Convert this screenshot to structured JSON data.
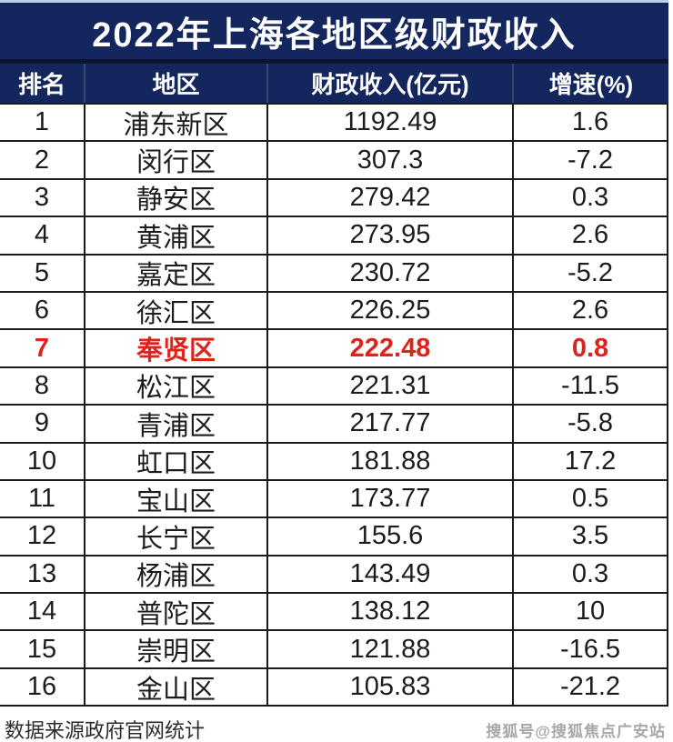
{
  "title": "2022年上海各地区级财政收入",
  "table": {
    "headers": [
      "排名",
      "地区",
      "财政收入(亿元)",
      "增速(%)"
    ],
    "rows": [
      {
        "rank": "1",
        "district": "浦东新区",
        "revenue": "1192.49",
        "growth": "1.6",
        "highlight": false
      },
      {
        "rank": "2",
        "district": "闵行区",
        "revenue": "307.3",
        "growth": "-7.2",
        "highlight": false
      },
      {
        "rank": "3",
        "district": "静安区",
        "revenue": "279.42",
        "growth": "0.3",
        "highlight": false
      },
      {
        "rank": "4",
        "district": "黄浦区",
        "revenue": "273.95",
        "growth": "2.6",
        "highlight": false
      },
      {
        "rank": "5",
        "district": "嘉定区",
        "revenue": "230.72",
        "growth": "-5.2",
        "highlight": false
      },
      {
        "rank": "6",
        "district": "徐汇区",
        "revenue": "226.25",
        "growth": "2.6",
        "highlight": false
      },
      {
        "rank": "7",
        "district": "奉贤区",
        "revenue": "222.48",
        "growth": "0.8",
        "highlight": true
      },
      {
        "rank": "8",
        "district": "松江区",
        "revenue": "221.31",
        "growth": "-11.5",
        "highlight": false
      },
      {
        "rank": "9",
        "district": "青浦区",
        "revenue": "217.77",
        "growth": "-5.8",
        "highlight": false
      },
      {
        "rank": "10",
        "district": "虹口区",
        "revenue": "181.88",
        "growth": "17.2",
        "highlight": false
      },
      {
        "rank": "11",
        "district": "宝山区",
        "revenue": "173.77",
        "growth": "0.5",
        "highlight": false
      },
      {
        "rank": "12",
        "district": "长宁区",
        "revenue": "155.6",
        "growth": "3.5",
        "highlight": false
      },
      {
        "rank": "13",
        "district": "杨浦区",
        "revenue": "143.49",
        "growth": "0.3",
        "highlight": false
      },
      {
        "rank": "14",
        "district": "普陀区",
        "revenue": "138.12",
        "growth": "10",
        "highlight": false
      },
      {
        "rank": "15",
        "district": "崇明区",
        "revenue": "121.88",
        "growth": "-16.5",
        "highlight": false
      },
      {
        "rank": "16",
        "district": "金山区",
        "revenue": "105.83",
        "growth": "-21.2",
        "highlight": false
      }
    ]
  },
  "footer": {
    "source": "数据来源政府官网统计",
    "watermark": "搜狐号@搜狐焦点广安站"
  },
  "colors": {
    "header_navy": "#13265e",
    "highlight_red": "#da241d",
    "border_black": "#1b1b1b",
    "text_black": "#1c1c1c",
    "watermark_gray": "#a7a7a7"
  },
  "chart_data": {
    "type": "table",
    "title": "2022年上海各地区级财政收入",
    "columns": [
      "排名",
      "地区",
      "财政收入(亿元)",
      "增速(%)"
    ],
    "rows": [
      [
        1,
        "浦东新区",
        1192.49,
        1.6
      ],
      [
        2,
        "闵行区",
        307.3,
        -7.2
      ],
      [
        3,
        "静安区",
        279.42,
        0.3
      ],
      [
        4,
        "黄浦区",
        273.95,
        2.6
      ],
      [
        5,
        "嘉定区",
        230.72,
        -5.2
      ],
      [
        6,
        "徐汇区",
        226.25,
        2.6
      ],
      [
        7,
        "奉贤区",
        222.48,
        0.8
      ],
      [
        8,
        "松江区",
        221.31,
        -11.5
      ],
      [
        9,
        "青浦区",
        217.77,
        -5.8
      ],
      [
        10,
        "虹口区",
        181.88,
        17.2
      ],
      [
        11,
        "宝山区",
        173.77,
        0.5
      ],
      [
        12,
        "长宁区",
        155.6,
        3.5
      ],
      [
        13,
        "杨浦区",
        143.49,
        0.3
      ],
      [
        14,
        "普陀区",
        138.12,
        10
      ],
      [
        15,
        "崇明区",
        121.88,
        -16.5
      ],
      [
        16,
        "金山区",
        105.83,
        -21.2
      ]
    ],
    "highlighted_rank": 7,
    "source_note": "数据来源政府官网统计"
  }
}
